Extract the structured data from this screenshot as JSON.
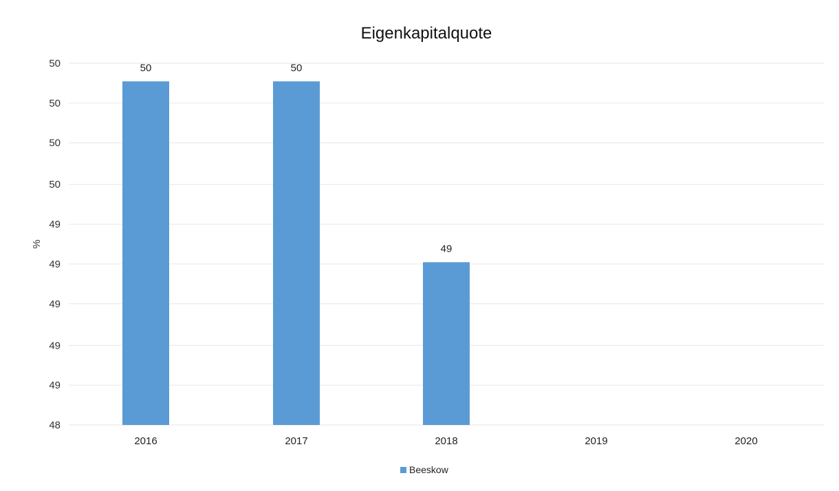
{
  "chart_data": {
    "type": "bar",
    "title": "Eigenkapitalquote",
    "ylabel": "%",
    "xlabel": "",
    "categories": [
      "2016",
      "2017",
      "2018",
      "2019",
      "2020"
    ],
    "series": [
      {
        "name": "Beeskow",
        "values": [
          49.9,
          49.9,
          48.9,
          null,
          null
        ],
        "data_labels": [
          "50",
          "50",
          "49",
          "",
          ""
        ],
        "color": "#5b9bd5"
      }
    ],
    "ylim": [
      48.0,
      50.0
    ],
    "yticks": [
      48.0,
      48.22,
      48.44,
      48.67,
      48.89,
      49.11,
      49.33,
      49.56,
      49.78,
      50.0
    ],
    "ytick_labels": [
      "48",
      "49",
      "49",
      "49",
      "49",
      "49",
      "50",
      "50",
      "50",
      "50"
    ],
    "grid": true,
    "legend_position": "bottom"
  }
}
